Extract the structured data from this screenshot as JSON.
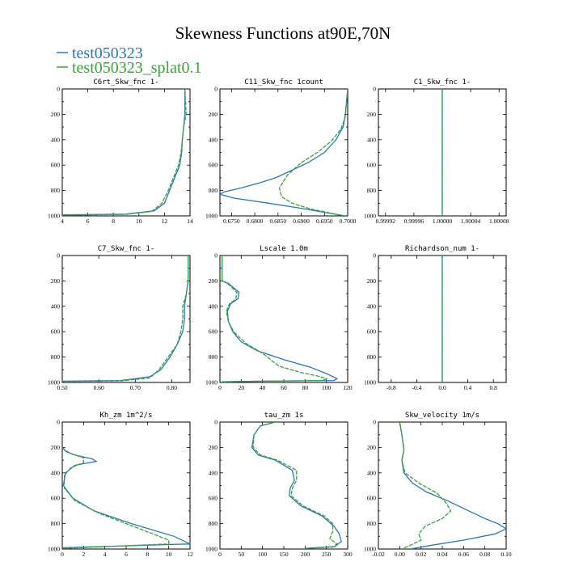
{
  "figure": {
    "title": "Skewness Functions at90E,70N"
  },
  "legend": [
    {
      "label": "test050323",
      "color": "#2b78b6"
    },
    {
      "label": "test050323_splat0.1",
      "color": "#38a33b"
    }
  ],
  "chart_data": [
    {
      "type": "line",
      "title": "C6rt_Skw_fnc  1-",
      "xlim": [
        4,
        14
      ],
      "ylim": [
        0,
        1000
      ],
      "xticks": [
        "4",
        "6",
        "8",
        "10",
        "12",
        "14"
      ],
      "yticks": [
        "0",
        "200",
        "400",
        "600",
        "800",
        "1000"
      ],
      "series": [
        {
          "name": "test050323",
          "x": [
            4,
            9,
            11.2,
            12,
            12.4,
            12.8,
            13.2,
            13.35,
            13.4,
            13.5,
            13.6,
            13.6
          ],
          "y": [
            992,
            986,
            960,
            900,
            800,
            700,
            600,
            500,
            400,
            300,
            200,
            0
          ]
        },
        {
          "name": "test050323_splat0.1",
          "x": [
            4,
            9,
            11,
            11.8,
            12.3,
            12.7,
            13.1,
            13.3,
            13.4,
            13.5,
            13.7,
            13.6
          ],
          "y": [
            994,
            988,
            965,
            900,
            800,
            700,
            600,
            500,
            400,
            300,
            200,
            0
          ]
        }
      ]
    },
    {
      "type": "line",
      "title": "C11_Skw_fnc  1count",
      "xlim": [
        0.6725,
        0.7
      ],
      "ylim": [
        0,
        1000
      ],
      "xticks": [
        "0.6750",
        "0.6800",
        "0.6850",
        "0.6900",
        "0.6950",
        "0.7000"
      ],
      "yticks": [
        "0",
        "200",
        "400",
        "600",
        "800",
        "1000"
      ],
      "series": [
        {
          "name": "test050323",
          "x": [
            0.7,
            0.6995,
            0.699,
            0.6975,
            0.695,
            0.6915,
            0.688,
            0.6845,
            0.681,
            0.677,
            0.6735,
            0.6725,
            0.6755,
            0.683,
            0.69,
            0.6955,
            0.6995
          ],
          "y": [
            0,
            200,
            300,
            400,
            500,
            580,
            640,
            700,
            740,
            780,
            810,
            830,
            860,
            900,
            940,
            975,
            1000
          ]
        },
        {
          "name": "test050323_splat0.1",
          "x": [
            0.7,
            0.6995,
            0.6985,
            0.6965,
            0.6935,
            0.69,
            0.687,
            0.6853,
            0.6858,
            0.688,
            0.692,
            0.696,
            0.699
          ],
          "y": [
            0,
            220,
            320,
            410,
            500,
            580,
            680,
            780,
            850,
            900,
            945,
            975,
            1000
          ]
        }
      ]
    },
    {
      "type": "line",
      "title": "C1_Skw_fnc  1-",
      "xlim": [
        0.99991,
        1.00009
      ],
      "ylim": [
        0,
        1000
      ],
      "xticks": [
        "0.99992",
        "0.99996",
        "1.00000",
        "1.00004",
        "1.00008"
      ],
      "yticks": [
        "0",
        "200",
        "400",
        "600",
        "800",
        "1000"
      ],
      "series": [
        {
          "name": "test050323",
          "x": [
            1.0,
            1.0
          ],
          "y": [
            0,
            1000
          ]
        },
        {
          "name": "test050323_splat0.1",
          "x": [
            1.0,
            1.0
          ],
          "y": [
            0,
            1000
          ]
        }
      ]
    },
    {
      "type": "line",
      "title": "C7_Skw_fnc  1-",
      "xlim": [
        0.5,
        0.85
      ],
      "ylim": [
        0,
        1000
      ],
      "xticks": [
        "0.50",
        "0.60",
        "0.70",
        "0.80"
      ],
      "yticks": [
        "0",
        "200",
        "400",
        "600",
        "800",
        "1000"
      ],
      "series": [
        {
          "name": "test050323",
          "x": [
            0.5,
            0.66,
            0.74,
            0.77,
            0.795,
            0.815,
            0.83,
            0.835,
            0.835,
            0.84,
            0.845,
            0.845
          ],
          "y": [
            990,
            985,
            955,
            900,
            800,
            700,
            600,
            500,
            400,
            300,
            200,
            0
          ]
        },
        {
          "name": "test050323_splat0.1",
          "x": [
            0.5,
            0.66,
            0.74,
            0.765,
            0.79,
            0.815,
            0.825,
            0.83,
            0.83,
            0.84,
            0.845,
            0.845
          ],
          "y": [
            992,
            988,
            965,
            900,
            800,
            700,
            600,
            500,
            400,
            300,
            200,
            0
          ]
        }
      ]
    },
    {
      "type": "line",
      "title": "Lscale  1.0m",
      "xlim": [
        0,
        120
      ],
      "ylim": [
        0,
        1000
      ],
      "xticks": [
        "0",
        "20",
        "40",
        "60",
        "80",
        "100",
        "120"
      ],
      "yticks": [
        "0",
        "200",
        "400",
        "600",
        "800",
        "1000"
      ],
      "series": [
        {
          "name": "test050323",
          "x": [
            2,
            2,
            8,
            18,
            17,
            10,
            7,
            8,
            12,
            20,
            35,
            60,
            85,
            100,
            110,
            107,
            40,
            2
          ],
          "y": [
            0,
            200,
            220,
            290,
            340,
            380,
            440,
            520,
            600,
            680,
            750,
            820,
            880,
            930,
            970,
            985,
            990,
            995
          ]
        },
        {
          "name": "test050323_splat0.1",
          "x": [
            2,
            2,
            7,
            16,
            15,
            9,
            6,
            8,
            13,
            24,
            40,
            55,
            75,
            92,
            100,
            96,
            40,
            2
          ],
          "y": [
            0,
            200,
            220,
            290,
            340,
            380,
            440,
            520,
            600,
            690,
            770,
            870,
            920,
            950,
            970,
            985,
            990,
            995
          ]
        }
      ]
    },
    {
      "type": "line",
      "title": "Richardson_num  1-",
      "xlim": [
        -1,
        1
      ],
      "ylim": [
        0,
        1000
      ],
      "xticks": [
        "-0.8",
        "-0.4",
        "0.0",
        "0.4",
        "0.8"
      ],
      "yticks": [
        "0",
        "200",
        "400",
        "600",
        "800",
        "1000"
      ],
      "series": [
        {
          "name": "test050323",
          "x": [
            0,
            0
          ],
          "y": [
            0,
            1000
          ]
        },
        {
          "name": "test050323_splat0.1",
          "x": [
            0,
            0
          ],
          "y": [
            0,
            1000
          ]
        }
      ]
    },
    {
      "type": "line",
      "title": "Kh_zm   1m^2/s",
      "xlim": [
        0,
        12
      ],
      "ylim": [
        0,
        1000
      ],
      "xticks": [
        "0",
        "2",
        "4",
        "6",
        "8",
        "10",
        "12"
      ],
      "yticks": [
        "0",
        "200",
        "400",
        "600",
        "800",
        "1000"
      ],
      "series": [
        {
          "name": "test050323",
          "x": [
            0,
            0.3,
            1.2,
            2.8,
            3.2,
            1.2,
            0.3,
            0.1,
            1,
            3,
            6.5,
            10.5,
            12,
            4,
            0
          ],
          "y": [
            200,
            230,
            260,
            290,
            310,
            340,
            400,
            500,
            600,
            700,
            800,
            900,
            960,
            980,
            990
          ]
        },
        {
          "name": "test050323_splat0.1",
          "x": [
            0,
            0.3,
            1,
            2,
            2,
            0.8,
            0.2,
            0.2,
            1.2,
            3.5,
            6,
            8.5,
            10,
            10,
            3,
            0
          ],
          "y": [
            200,
            225,
            255,
            280,
            320,
            360,
            420,
            520,
            620,
            720,
            800,
            880,
            930,
            960,
            985,
            995
          ]
        }
      ]
    },
    {
      "type": "line",
      "title": "tau_zm   1s",
      "xlim": [
        0,
        300
      ],
      "ylim": [
        0,
        1000
      ],
      "xticks": [
        "0",
        "50",
        "100",
        "150",
        "200",
        "250",
        "300"
      ],
      "yticks": [
        "0",
        "200",
        "400",
        "600",
        "800",
        "1000"
      ],
      "series": [
        {
          "name": "test050323",
          "x": [
            130,
            95,
            80,
            75,
            90,
            130,
            170,
            175,
            165,
            163,
            190,
            240,
            268,
            280,
            285,
            270,
            200
          ],
          "y": [
            0,
            30,
            100,
            200,
            260,
            300,
            380,
            460,
            520,
            580,
            660,
            740,
            820,
            880,
            940,
            980,
            995
          ]
        },
        {
          "name": "test050323_splat0.1",
          "x": [
            130,
            95,
            80,
            78,
            95,
            135,
            180,
            180,
            170,
            167,
            195,
            245,
            265,
            265,
            258,
            275,
            265,
            200
          ],
          "y": [
            0,
            30,
            100,
            200,
            260,
            300,
            380,
            460,
            520,
            580,
            660,
            740,
            800,
            860,
            920,
            960,
            985,
            995
          ]
        }
      ]
    },
    {
      "type": "line",
      "title": "Skw_velocity  1m/s",
      "xlim": [
        -0.02,
        0.1
      ],
      "ylim": [
        0,
        1000
      ],
      "xticks": [
        "-0.02",
        "0.00",
        "0.02",
        "0.04",
        "0.06",
        "0.08",
        "0.10"
      ],
      "yticks": [
        "0",
        "200",
        "400",
        "600",
        "800",
        "1000"
      ],
      "series": [
        {
          "name": "test050323",
          "x": [
            0,
            0.002,
            0.004,
            0.002,
            0.004,
            0.012,
            0.025,
            0.045,
            0.065,
            0.08,
            0.092,
            0.1,
            0.09,
            0.06,
            0.03,
            0.01
          ],
          "y": [
            0,
            100,
            220,
            300,
            400,
            480,
            550,
            620,
            700,
            760,
            800,
            840,
            880,
            930,
            970,
            1000
          ]
        },
        {
          "name": "test050323_splat0.1",
          "x": [
            0,
            0.002,
            0.004,
            0.002,
            0.005,
            0.018,
            0.035,
            0.044,
            0.048,
            0.04,
            0.024,
            0.018,
            0.02,
            0.01,
            0.002
          ],
          "y": [
            0,
            100,
            220,
            300,
            400,
            480,
            560,
            640,
            700,
            760,
            820,
            880,
            930,
            970,
            1000
          ]
        }
      ]
    }
  ]
}
